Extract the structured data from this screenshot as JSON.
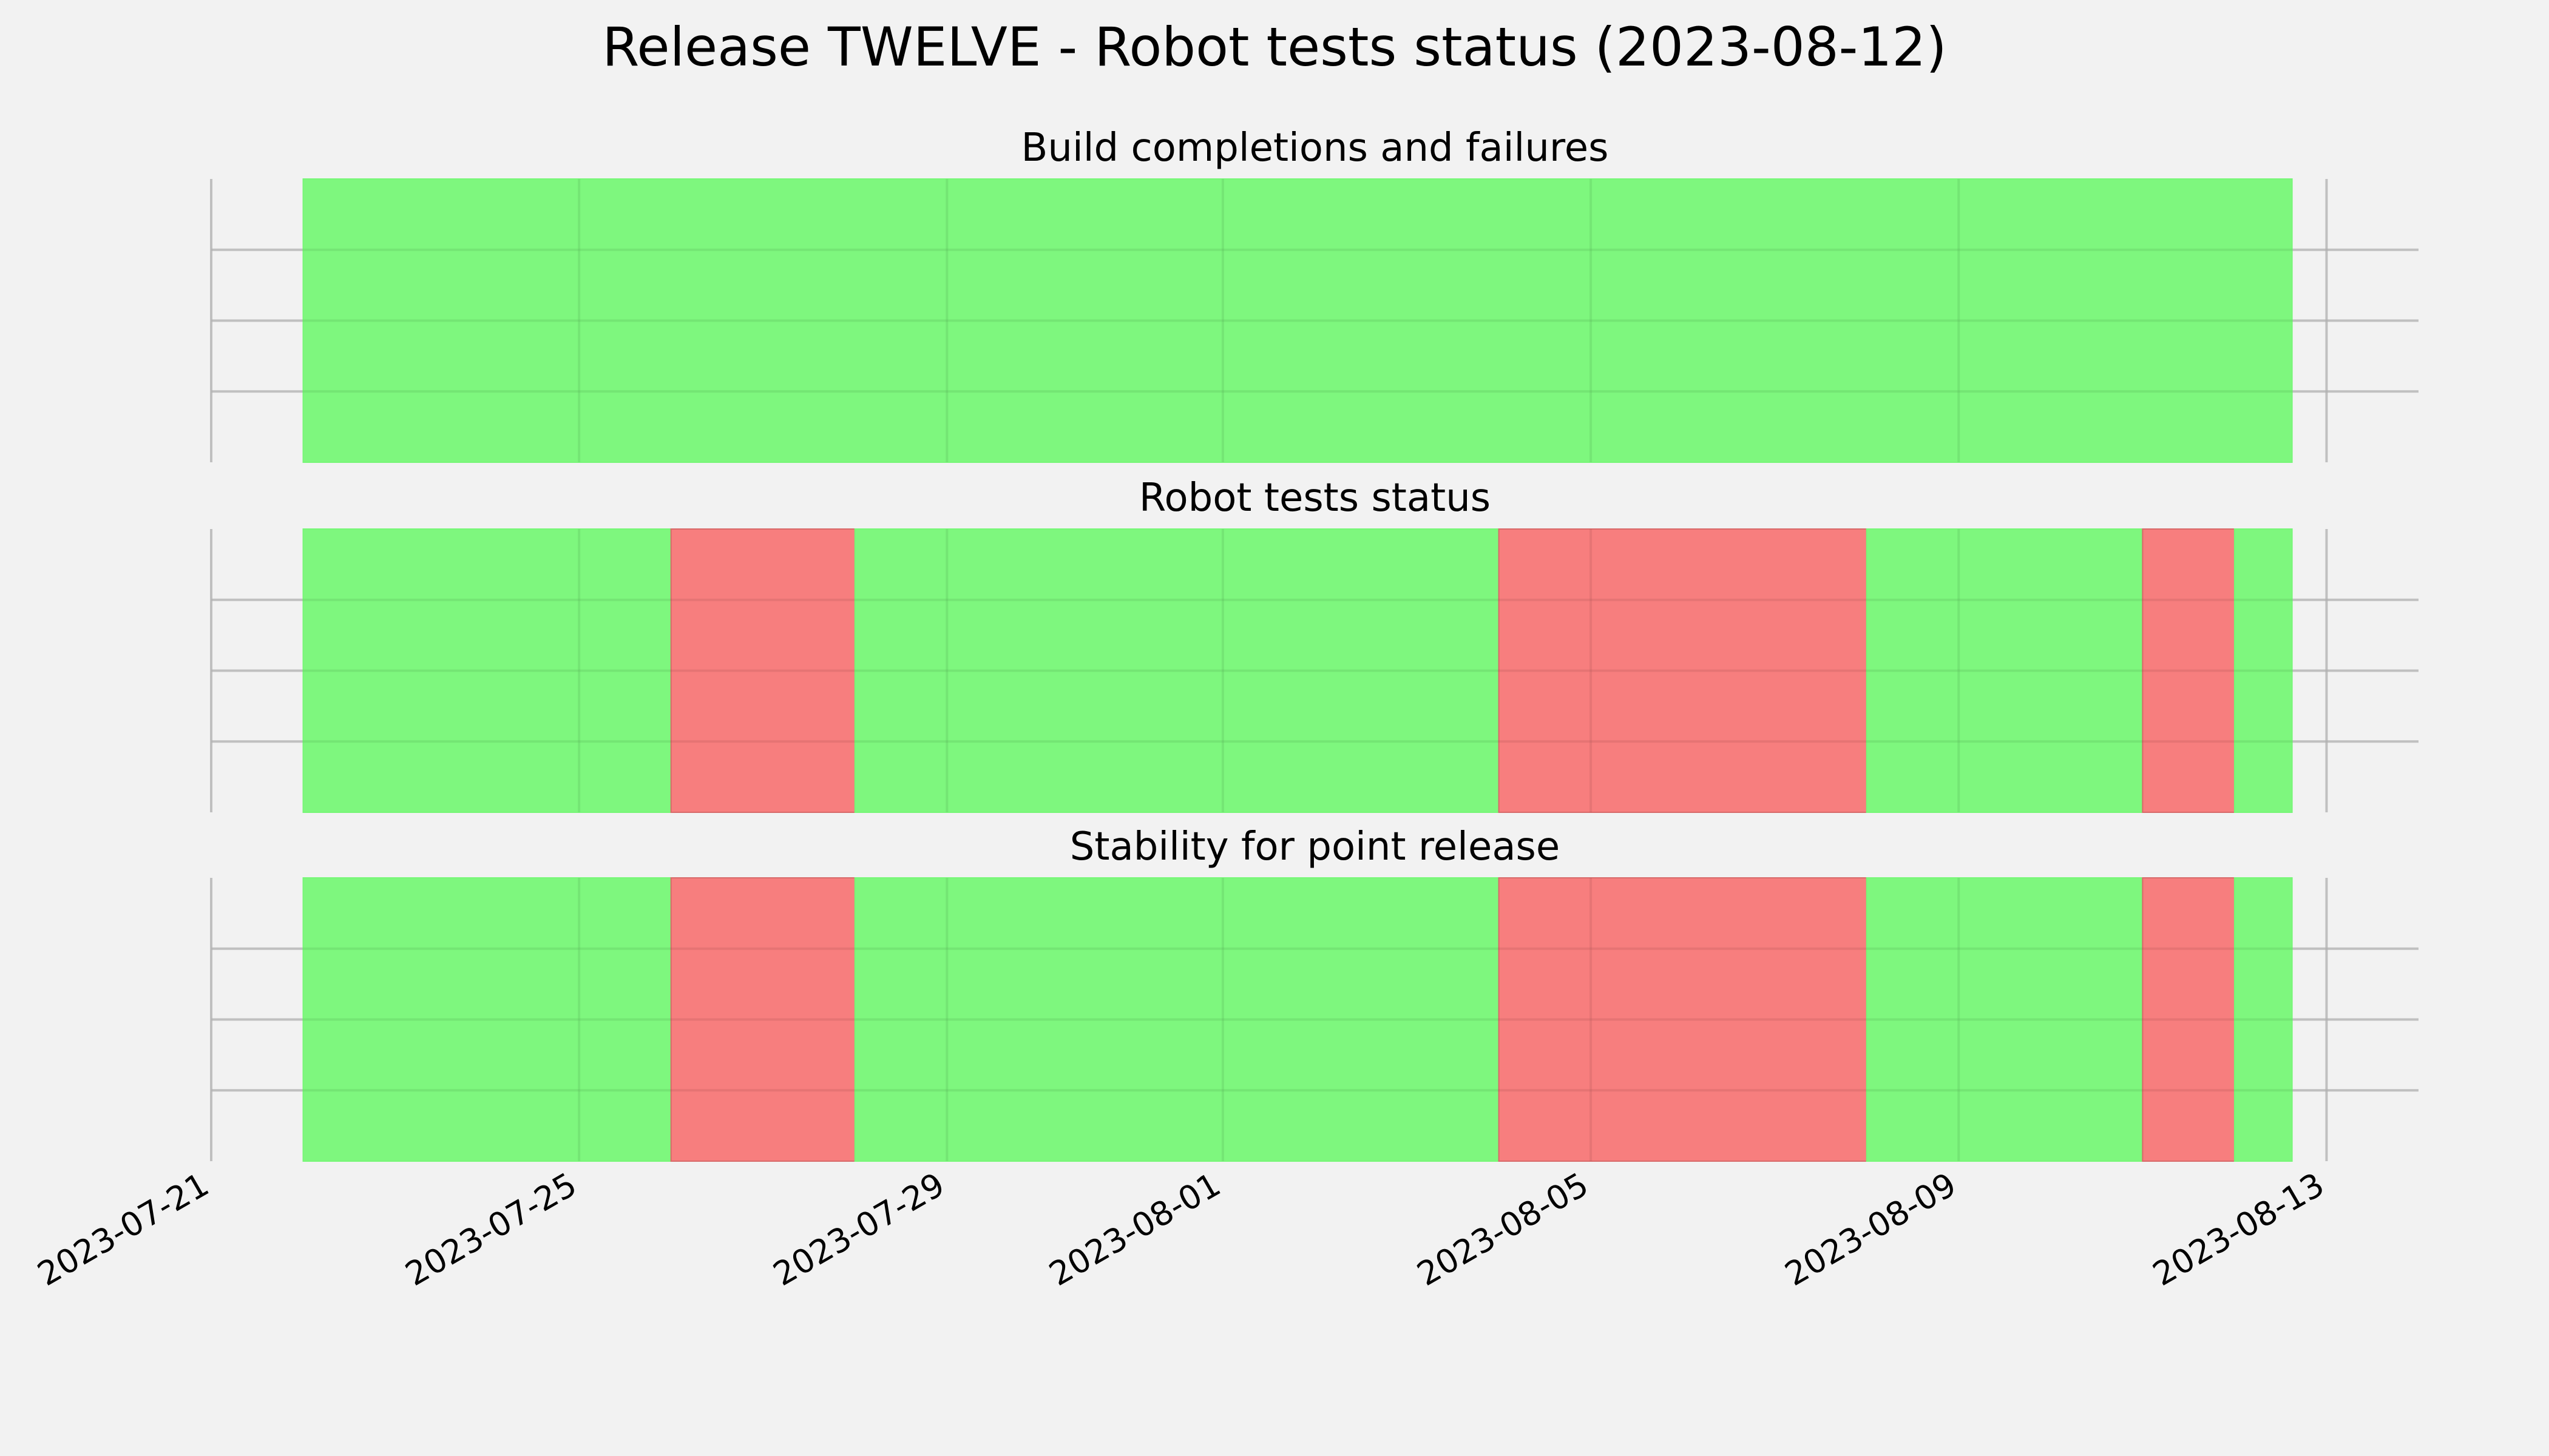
{
  "chart_data": {
    "type": "timeline",
    "title": "Release TWELVE - Robot tests status (2023-08-12)",
    "x_axis": {
      "type": "date",
      "range": [
        "2023-07-21",
        "2023-08-14"
      ],
      "ticks": [
        "2023-07-21",
        "2023-07-25",
        "2023-07-29",
        "2023-08-01",
        "2023-08-05",
        "2023-08-09",
        "2023-08-13"
      ]
    },
    "grid": true,
    "colors": {
      "pass": "#77f777",
      "fail": "#f77777",
      "background": "#f2f2f2",
      "grid": "#cccccc"
    },
    "panels": [
      {
        "title": "Build completions and failures",
        "segments": [
          {
            "start": "2023-07-22",
            "end": "2023-08-12T15:00",
            "status": "pass"
          }
        ]
      },
      {
        "title": "Robot tests status",
        "segments": [
          {
            "start": "2023-07-22",
            "end": "2023-07-26",
            "status": "pass"
          },
          {
            "start": "2023-07-26",
            "end": "2023-07-28",
            "status": "fail"
          },
          {
            "start": "2023-07-28",
            "end": "2023-08-04",
            "status": "pass"
          },
          {
            "start": "2023-08-04",
            "end": "2023-08-08",
            "status": "fail"
          },
          {
            "start": "2023-08-08",
            "end": "2023-08-11",
            "status": "pass"
          },
          {
            "start": "2023-08-11",
            "end": "2023-08-12",
            "status": "fail"
          },
          {
            "start": "2023-08-12",
            "end": "2023-08-12T15:00",
            "status": "pass"
          }
        ]
      },
      {
        "title": "Stability for point release",
        "segments": [
          {
            "start": "2023-07-22",
            "end": "2023-07-26",
            "status": "pass"
          },
          {
            "start": "2023-07-26",
            "end": "2023-07-28",
            "status": "fail"
          },
          {
            "start": "2023-07-28",
            "end": "2023-08-04",
            "status": "pass"
          },
          {
            "start": "2023-08-04",
            "end": "2023-08-08",
            "status": "fail"
          },
          {
            "start": "2023-08-08",
            "end": "2023-08-11",
            "status": "pass"
          },
          {
            "start": "2023-08-11",
            "end": "2023-08-12",
            "status": "fail"
          },
          {
            "start": "2023-08-12",
            "end": "2023-08-12T15:00",
            "status": "pass"
          }
        ]
      }
    ]
  }
}
